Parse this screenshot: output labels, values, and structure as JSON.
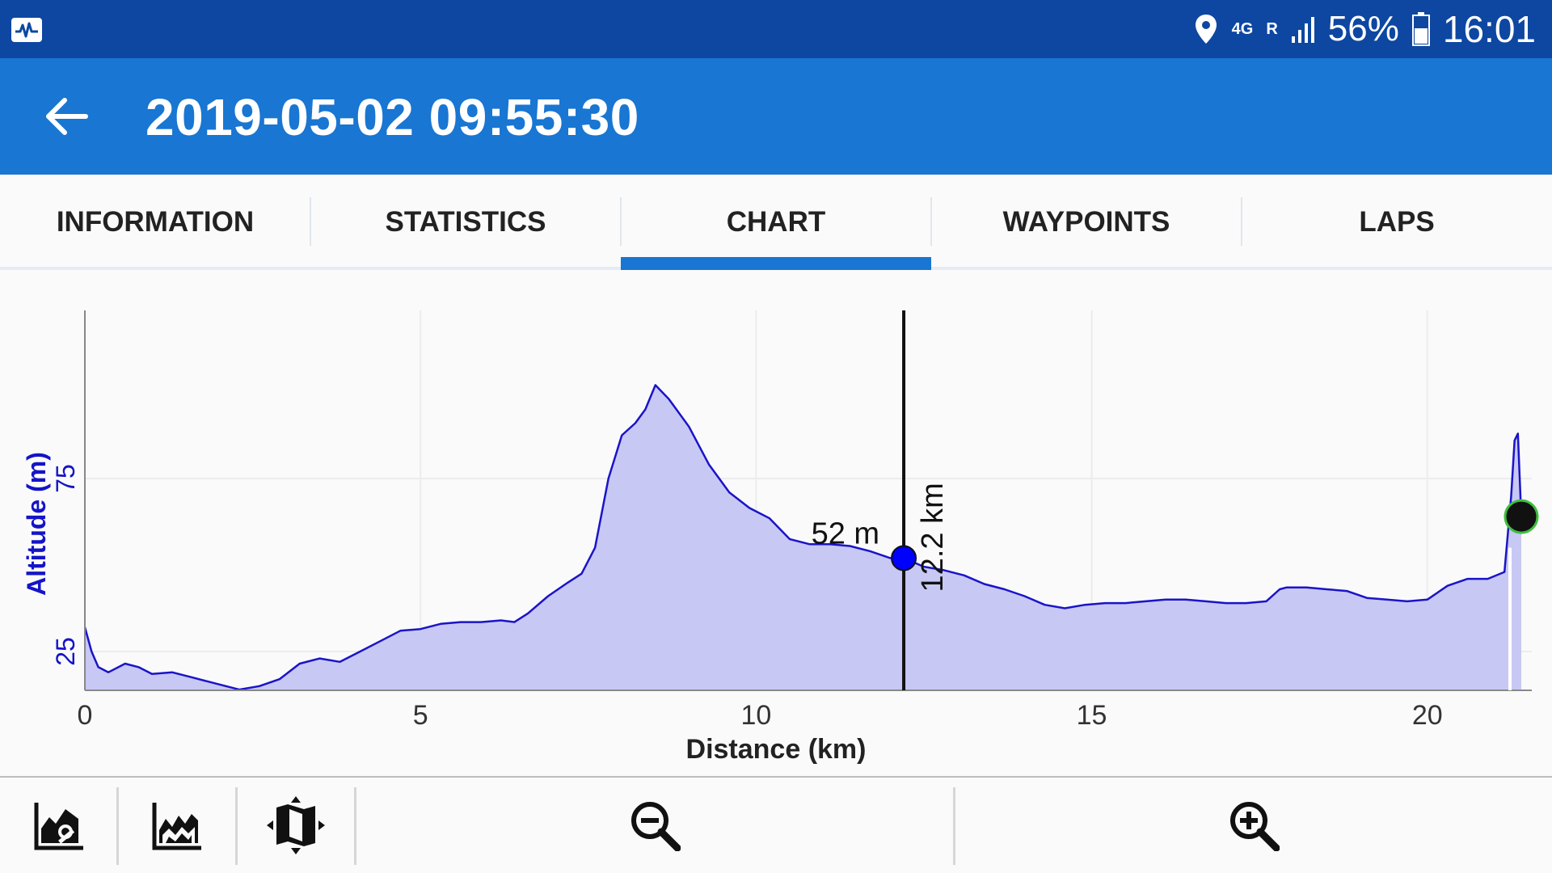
{
  "status": {
    "app_icon": "activity-chart-icon",
    "battery": "56%",
    "time": "16:01",
    "network": "4G",
    "roaming": "R"
  },
  "appbar": {
    "title": "2019-05-02 09:55:30",
    "back_icon": "arrow-left-icon"
  },
  "tabs": [
    {
      "label": "INFORMATION",
      "selected": false
    },
    {
      "label": "STATISTICS",
      "selected": false
    },
    {
      "label": "CHART",
      "selected": true
    },
    {
      "label": "WAYPOINTS",
      "selected": false
    },
    {
      "label": "LAPS",
      "selected": false
    }
  ],
  "colors": {
    "accent": "#1976d2",
    "statusbar": "#0d47a1",
    "series_line": "#1a14c8",
    "series_fill": "#c8c8f5",
    "marker": "#0000ff"
  },
  "chart_data": {
    "type": "area",
    "xlabel": "Distance (km)",
    "ylabel": "Altitude (m)",
    "xlim": [
      0,
      21.4
    ],
    "ylim": [
      14,
      102
    ],
    "xticks": [
      "0",
      "5",
      "10",
      "15",
      "20"
    ],
    "yticks": [
      "25",
      "75"
    ],
    "grid": true,
    "series": [
      {
        "x": [
          0,
          0.1,
          0.2,
          0.35,
          0.6,
          0.8,
          1.0,
          1.3,
          1.6,
          2.0,
          2.3,
          2.6,
          2.9,
          3.2,
          3.5,
          3.8,
          4.1,
          4.4,
          4.7,
          5.0,
          5.3,
          5.6,
          5.9,
          6.2,
          6.4,
          6.6,
          6.9,
          7.2,
          7.4,
          7.6,
          7.8,
          8.0,
          8.2,
          8.35,
          8.5,
          8.7,
          9.0,
          9.3,
          9.6,
          9.9,
          10.2,
          10.5,
          10.8,
          11.1,
          11.4,
          11.7,
          12.0,
          12.2,
          12.5,
          12.8,
          13.1,
          13.4,
          13.7,
          14.0,
          14.3,
          14.6,
          14.9,
          15.2,
          15.5,
          15.8,
          16.1,
          16.4,
          16.7,
          17.0,
          17.3,
          17.6,
          17.8,
          17.9,
          18.2,
          18.5,
          18.8,
          19.1,
          19.4,
          19.7,
          20.0,
          20.3,
          20.6,
          20.9,
          21.15,
          21.25,
          21.3,
          21.35,
          21.4
        ],
        "y": [
          32,
          25,
          20.5,
          19,
          21.5,
          20.5,
          18.5,
          19,
          17.5,
          15.5,
          14,
          15,
          17,
          21.5,
          23,
          22,
          25,
          28,
          31,
          31.5,
          33,
          33.5,
          33.5,
          34,
          33.5,
          36,
          41,
          45,
          47.5,
          55,
          75,
          87.5,
          91,
          95,
          102,
          98,
          90,
          79,
          71,
          66.5,
          63.5,
          57.5,
          56,
          56,
          55.5,
          54,
          52,
          52,
          49.5,
          48.5,
          47,
          44.5,
          43,
          41,
          38.5,
          37.5,
          38.5,
          39,
          39,
          39.5,
          40,
          40,
          39.5,
          39,
          39,
          39.5,
          43,
          43.5,
          43.5,
          43,
          42.5,
          40.5,
          40,
          39.5,
          40,
          44,
          46,
          46,
          48,
          70,
          86,
          88,
          64
        ]
      }
    ],
    "cursor": {
      "x": 12.2,
      "y": 52,
      "x_label": "12.2 km",
      "y_label": "52 m"
    }
  },
  "toolbar": {
    "buttons": [
      {
        "icon": "chart-settings-icon"
      },
      {
        "icon": "area-chart-icon"
      },
      {
        "icon": "map-icon"
      },
      {
        "icon": "zoom-out-icon"
      },
      {
        "icon": "zoom-in-icon"
      }
    ]
  }
}
